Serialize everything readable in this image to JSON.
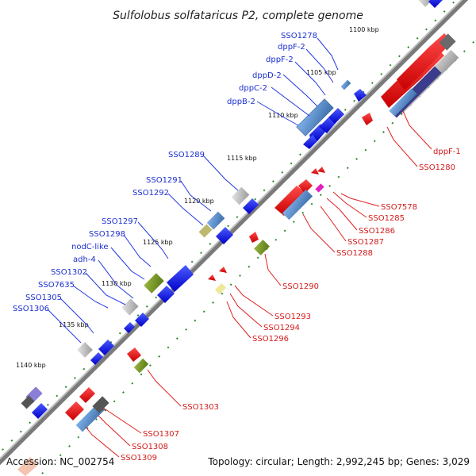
{
  "title": "Sulfolobus solfataricus P2, complete genome",
  "footer": {
    "accession": "Accession: NC_002754",
    "summary": "Topology: circular; Length: 2,992,245 bp; Genes: 3,029"
  },
  "kbp_ticks": [
    "1100 kbp",
    "1105 kbp",
    "1110 kbp",
    "1115 kbp",
    "1120 kbp",
    "1125 kbp",
    "1130 kbp",
    "1135 kbp",
    "1140 kbp"
  ],
  "labels_blue": [
    "SSO1278",
    "dppF-2",
    "dppF-2",
    "dppD-2",
    "dppC-2",
    "dppB-2",
    "SSO1289",
    "SSO1291",
    "SSO1292",
    "SSO1297",
    "SSO1298",
    "nodC-like",
    "adh-4",
    "SSO1302",
    "SSO7635",
    "SSO1305",
    "SSO1306"
  ],
  "labels_red": [
    "dppF-1",
    "SSO1280",
    "SSO7578",
    "SSO1285",
    "SSO1286",
    "SSO1287",
    "SSO1288",
    "SSO1290",
    "SSO1293",
    "SSO1294",
    "SSO1296",
    "SSO1303",
    "SSO1307",
    "SSO1308",
    "SSO1309"
  ],
  "colors": {
    "forward_gene": "#0a14e6",
    "reverse_gene": "#e60a0a",
    "backbone": "#8c8c8c",
    "gc_marks": "#1a8a1a",
    "olive_gene": "#6b8a1e",
    "steelblue_gene": "#4f86c6",
    "grey_gene": "#b4b4b4",
    "magenta_gene": "#e020c0"
  }
}
